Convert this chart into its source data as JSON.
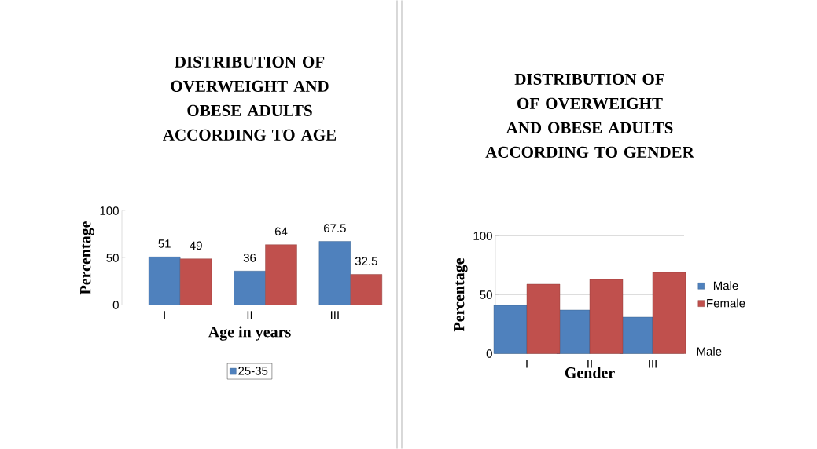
{
  "chart_data": [
    {
      "type": "bar",
      "title": "DISTRIBUTION OF OVERWEIGHT AND OBESE ADULTS ACCORDING TO AGE",
      "xlabel": "Age in years",
      "ylabel": "Percentage",
      "categories": [
        "I",
        "II",
        "III"
      ],
      "series": [
        {
          "name": "25-35",
          "color": "#4f81bd",
          "values": [
            51,
            36,
            67.5
          ]
        },
        {
          "color": "#c0504d",
          "values": [
            49,
            64,
            32.5
          ]
        }
      ],
      "ylim": [
        0,
        100
      ],
      "yticks": [
        0,
        50,
        100
      ],
      "data_labels": true,
      "legend": "bottom"
    },
    {
      "type": "bar",
      "title": "DISTRIBUTION OF OF OVERWEIGHT AND OBESE ADULTS ACCORDING TO GENDER",
      "xlabel": "Gender",
      "ylabel": "Percentage",
      "categories": [
        "I",
        "II",
        "III"
      ],
      "series": [
        {
          "name": "Male",
          "color": "#4f81bd",
          "values": [
            41,
            37,
            31
          ]
        },
        {
          "name": "Female",
          "color": "#c0504d",
          "values": [
            59,
            63,
            69
          ]
        }
      ],
      "ylim": [
        0,
        100
      ],
      "yticks": [
        0,
        50,
        100
      ],
      "grid": "y",
      "legend": "right",
      "annotations": [
        "Male"
      ]
    }
  ]
}
